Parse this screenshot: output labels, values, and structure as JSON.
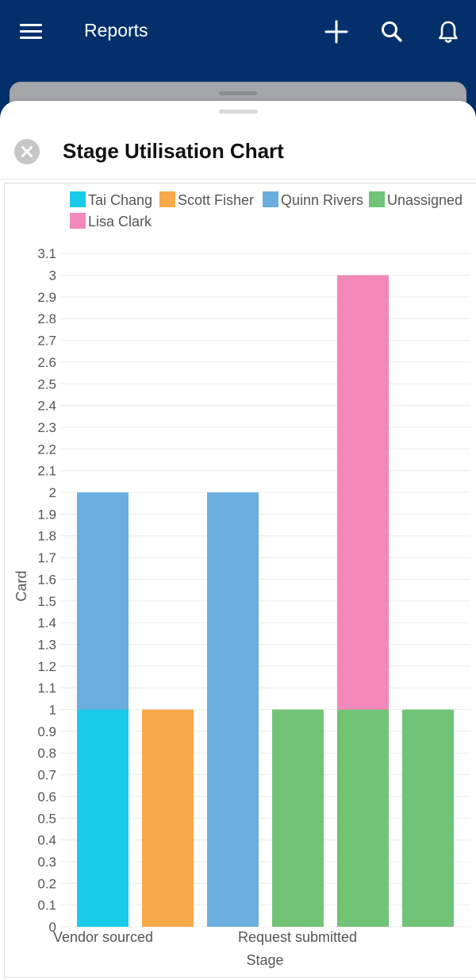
{
  "appbar": {
    "title": "Reports",
    "background": "#03306b",
    "icons": [
      "menu-icon",
      "plus-icon",
      "search-icon",
      "bell-icon"
    ]
  },
  "sheet": {
    "title": "Stage Utilisation Chart",
    "close_icon": "close-icon"
  },
  "chart_data": {
    "type": "bar",
    "stacked": true,
    "xlabel": "Stage",
    "ylabel": "Card",
    "ylim": [
      0,
      3.1
    ],
    "ytick_step": 0.1,
    "tick_labels_shown": [
      "Vendor sourced",
      "Request submitted"
    ],
    "grid": true,
    "legend_placement": "top",
    "series": [
      {
        "name": "Tai Chang",
        "color": "#19cbe8"
      },
      {
        "name": "Scott Fisher",
        "color": "#f8a94a"
      },
      {
        "name": "Quinn Rivers",
        "color": "#6aaedf"
      },
      {
        "name": "Unassigned",
        "color": "#71c476"
      },
      {
        "name": "Lisa Clark",
        "color": "#f289b9"
      }
    ],
    "bars": [
      {
        "segments": [
          {
            "series": "Tai Chang",
            "value": 1
          },
          {
            "series": "Quinn Rivers",
            "value": 1
          }
        ]
      },
      {
        "segments": [
          {
            "series": "Scott Fisher",
            "value": 1
          }
        ]
      },
      {
        "segments": [
          {
            "series": "Quinn Rivers",
            "value": 2
          }
        ]
      },
      {
        "segments": [
          {
            "series": "Unassigned",
            "value": 1
          }
        ]
      },
      {
        "segments": [
          {
            "series": "Unassigned",
            "value": 1
          },
          {
            "series": "Lisa Clark",
            "value": 2
          }
        ]
      },
      {
        "segments": [
          {
            "series": "Unassigned",
            "value": 1
          }
        ]
      }
    ]
  }
}
